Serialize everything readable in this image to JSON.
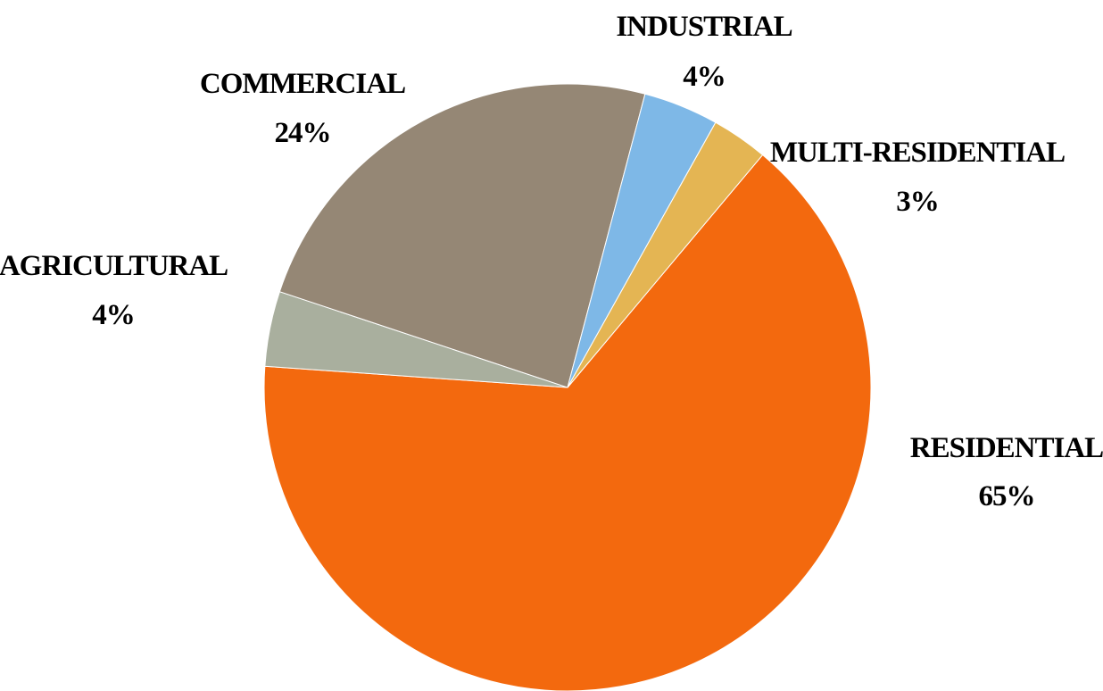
{
  "chart_data": {
    "type": "pie",
    "slices": [
      {
        "name": "RESIDENTIAL",
        "value": 65,
        "label_value": "65%",
        "color": "#F3690E"
      },
      {
        "name": "AGRICULTURAL",
        "value": 4,
        "label_value": "4%",
        "color": "#A9AF9E"
      },
      {
        "name": "COMMERCIAL",
        "value": 24,
        "label_value": "24%",
        "color": "#958775"
      },
      {
        "name": "INDUSTRIAL",
        "value": 4,
        "label_value": "4%",
        "color": "#7EB8E7"
      },
      {
        "name": "MULTI-RESIDENTIAL",
        "value": 3,
        "label_value": "3%",
        "color": "#E4B553"
      }
    ],
    "start_angle_deg": 40,
    "direction": "clockwise",
    "legend": "none",
    "data_labels": "outside"
  }
}
